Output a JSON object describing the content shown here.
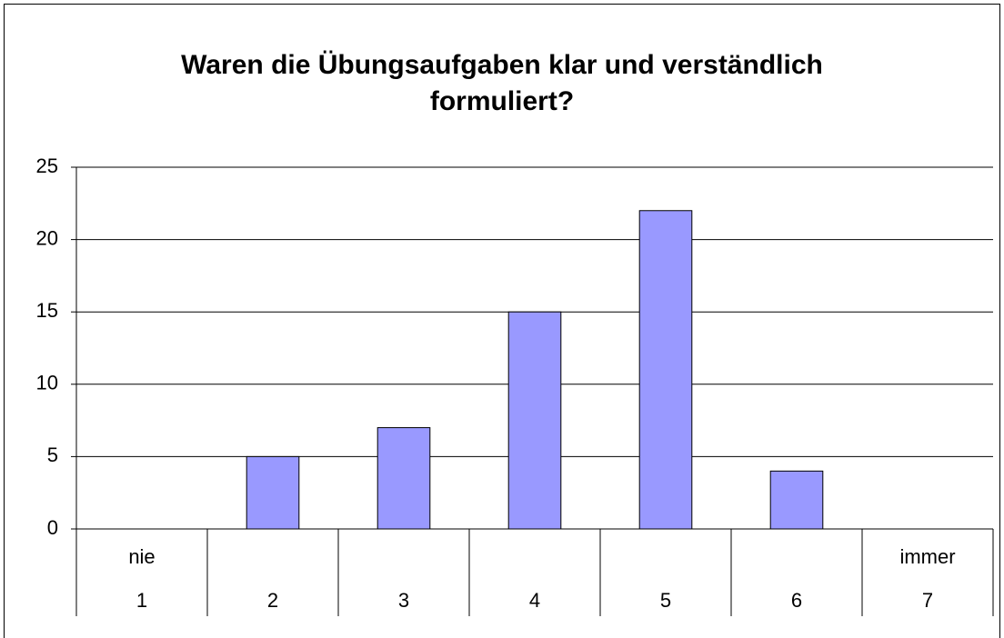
{
  "chart_data": {
    "type": "bar",
    "title": "Waren die Übungsaufgaben klar und verständlich formuliert?",
    "categories": [
      "1",
      "2",
      "3",
      "4",
      "5",
      "6",
      "7"
    ],
    "category_groups": [
      "nie",
      null,
      null,
      null,
      null,
      null,
      "immer"
    ],
    "values": [
      0,
      5,
      7,
      15,
      22,
      4,
      0
    ],
    "color": "#9999ff",
    "ylim": [
      0,
      25
    ],
    "yticks": [
      0,
      5,
      10,
      15,
      20,
      25
    ],
    "grid": true
  }
}
